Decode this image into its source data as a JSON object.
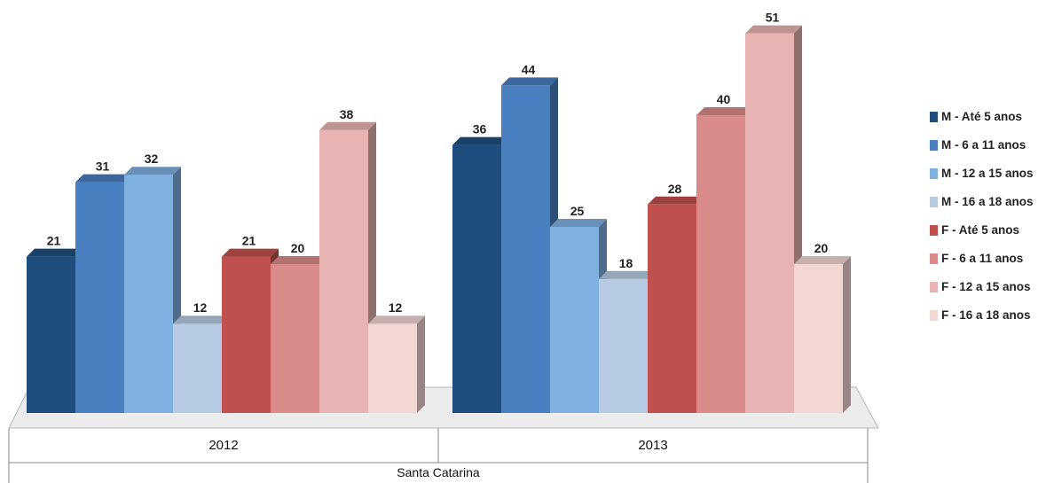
{
  "chart_data": {
    "type": "bar",
    "title": "",
    "xlabel": "Santa Catarina",
    "ylabel": "",
    "ylim": [
      0,
      55
    ],
    "grid": false,
    "legend_position": "right",
    "categories": [
      "2012",
      "2013"
    ],
    "series": [
      {
        "name": "M - Até 5 anos",
        "color": "#1f4e7e",
        "values": [
          21,
          36
        ]
      },
      {
        "name": "M - 6 a 11 anos",
        "color": "#4a7fc0",
        "values": [
          31,
          44
        ]
      },
      {
        "name": "M - 12 a 15 anos",
        "color": "#7fb0e0",
        "values": [
          32,
          25
        ]
      },
      {
        "name": "M - 16 a 18 anos",
        "color": "#b6cbe2",
        "values": [
          12,
          18
        ]
      },
      {
        "name": "F - Até 5 anos",
        "color": "#c0504d",
        "values": [
          21,
          28
        ]
      },
      {
        "name": "F - 6 a 11 anos",
        "color": "#d98b89",
        "values": [
          20,
          40
        ]
      },
      {
        "name": "F - 12 a 15 anos",
        "color": "#e8b4b3",
        "values": [
          38,
          51
        ]
      },
      {
        "name": "F - 16 a 18 anos",
        "color": "#f2d7d5",
        "values": [
          12,
          20
        ]
      }
    ]
  }
}
